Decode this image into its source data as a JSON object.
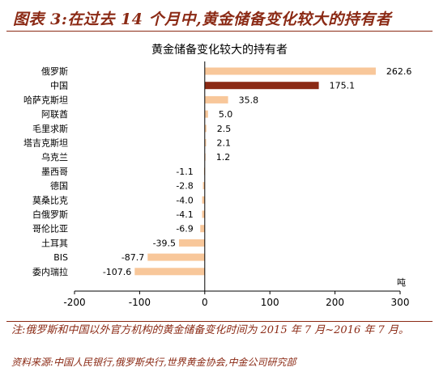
{
  "figure": {
    "title": "图表 3:在过去 14 个月中,黄金储备变化较大的持有者",
    "note": "注:俄罗斯和中国以外官方机构的黄金储备变化时间为 2015 年 7 月~2016 年 7 月。",
    "source": "资料来源:中国人民银行,俄罗斯央行,世界黄金协会,中金公司研究部"
  },
  "chart_data": {
    "type": "bar",
    "orientation": "horizontal",
    "title": "黄金储备变化较大的持有者",
    "unit_label": "吨",
    "categories": [
      "俄罗斯",
      "中国",
      "哈萨克斯坦",
      "阿联酋",
      "毛里求斯",
      "塔吉克斯坦",
      "乌克兰",
      "墨西哥",
      "德国",
      "莫桑比克",
      "白俄罗斯",
      "哥伦比亚",
      "土耳其",
      "BIS",
      "委内瑞拉"
    ],
    "values": [
      262.6,
      175.1,
      35.8,
      5.0,
      2.5,
      2.1,
      1.2,
      -1.1,
      -2.8,
      -4.0,
      -4.1,
      -6.9,
      -39.5,
      -87.7,
      -107.6
    ],
    "value_labels": [
      "262.6",
      "175.1",
      "35.8",
      "5.0",
      "2.5",
      "2.1",
      "1.2",
      "-1.1",
      "-2.8",
      "-4.0",
      "-4.1",
      "-6.9",
      "-39.5",
      "-87.7",
      "-107.6"
    ],
    "highlight_category": "中国",
    "xlim": [
      -200,
      300
    ],
    "xticks": [
      -200,
      -100,
      0,
      100,
      200,
      300
    ],
    "grid": false,
    "colors": {
      "default": "#f8c79a",
      "highlight": "#8b2a15"
    }
  }
}
